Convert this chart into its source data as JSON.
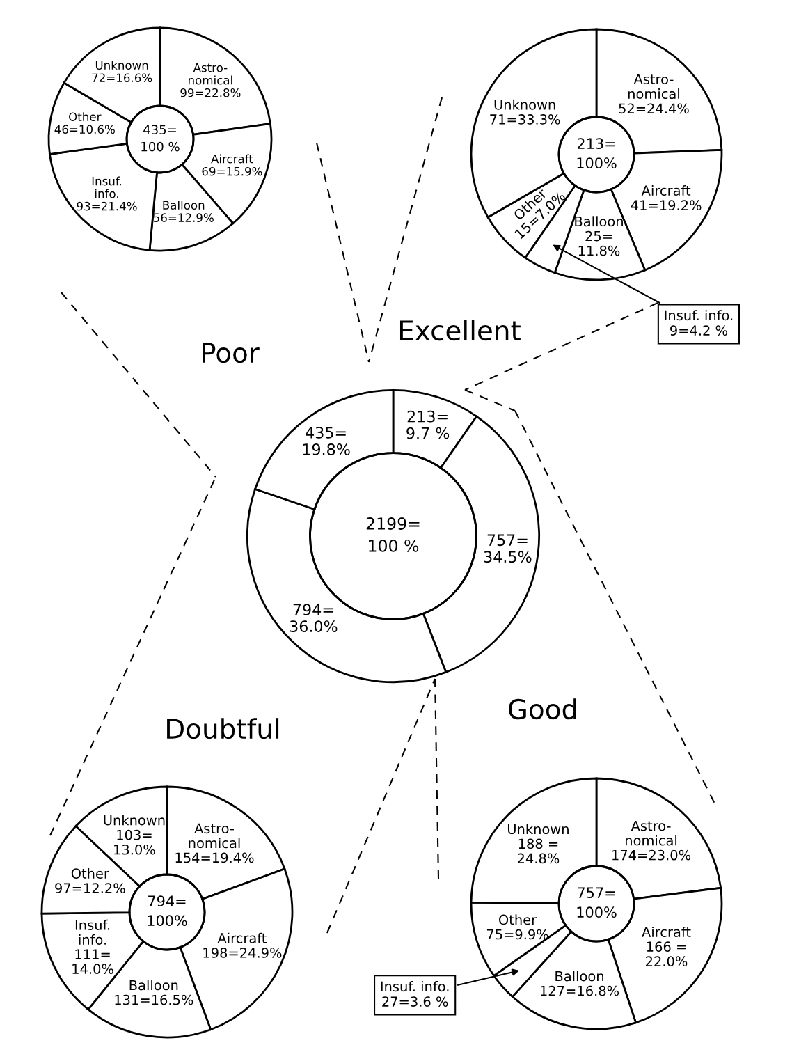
{
  "chart_data": [
    {
      "type": "donut",
      "categories": [
        null,
        null,
        null,
        null
      ],
      "values": [
        213,
        757,
        794,
        435
      ],
      "value_labels": [
        "213=\n9.7 %",
        "757=\n34.5%",
        "794=\n36.0%",
        "435=\n19.8%"
      ],
      "colors": [
        "#ffffff",
        "#ffffff",
        "#ffffff",
        "#ffffff"
      ],
      "annotations": [
        "2199=\n100 %"
      ]
    },
    {
      "type": "donut",
      "title": "Poor",
      "categories": [
        "Astro-\nnomical",
        "Aircraft",
        "Balloon",
        "Insuf.\ninfo.",
        "Other",
        "Unknown"
      ],
      "values": [
        99,
        69,
        56,
        93,
        46,
        72
      ],
      "value_labels": [
        "99=22.8%",
        "69=15.9%",
        "56=12.9%",
        "93=21.4%",
        "46=10.6%",
        "72=16.6%"
      ],
      "colors": [
        "#ffffff",
        "#ffffff",
        "#ffffff",
        "#ffffff",
        "#ffffff",
        "#ffffff"
      ],
      "annotations": [
        "435=\n100 %"
      ]
    },
    {
      "type": "donut",
      "title": "Excellent",
      "categories": [
        "Astro-\nnomical",
        "Aircraft",
        "Balloon",
        "Insuf. info.",
        "Other",
        "Unknown"
      ],
      "values": [
        52,
        41,
        25,
        9,
        15,
        71
      ],
      "value_labels": [
        "52=24.4%",
        "41=19.2%",
        "25=\n11.8%",
        "9=4.2 %",
        "15=7.0%",
        "71=33.3%"
      ],
      "colors": [
        "#ffffff",
        "#ffffff",
        "#ffffff",
        "#ffffff",
        "#ffffff",
        "#ffffff"
      ],
      "annotations": [
        "213=\n100%"
      ]
    },
    {
      "type": "donut",
      "title": "Doubtful",
      "categories": [
        "Astro-\nnomical",
        "Aircraft",
        "Balloon",
        "Insuf.\ninfo.",
        "Other",
        "Unknown"
      ],
      "values": [
        154,
        198,
        131,
        111,
        97,
        103
      ],
      "value_labels": [
        "154=19.4%",
        "198=24.9%",
        "131=16.5%",
        "111=\n14.0%",
        "97=12.2%",
        "103=\n13.0%"
      ],
      "colors": [
        "#ffffff",
        "#ffffff",
        "#ffffff",
        "#ffffff",
        "#ffffff",
        "#ffffff"
      ],
      "annotations": [
        "794=\n100%"
      ]
    },
    {
      "type": "donut",
      "title": "Good",
      "categories": [
        "Astro-\nnomical",
        "Aircraft",
        "Balloon",
        "Insuf. info.",
        "Other",
        "Unknown"
      ],
      "values": [
        174,
        166,
        127,
        27,
        75,
        188
      ],
      "value_labels": [
        "174=23.0%",
        "166 =\n22.0%",
        "127=16.8%",
        "27=3.6 %",
        "75=9.9%",
        "188 =\n24.8%"
      ],
      "colors": [
        "#ffffff",
        "#ffffff",
        "#ffffff",
        "#ffffff",
        "#ffffff",
        "#ffffff"
      ],
      "annotations": [
        "757=\n100%"
      ]
    }
  ]
}
